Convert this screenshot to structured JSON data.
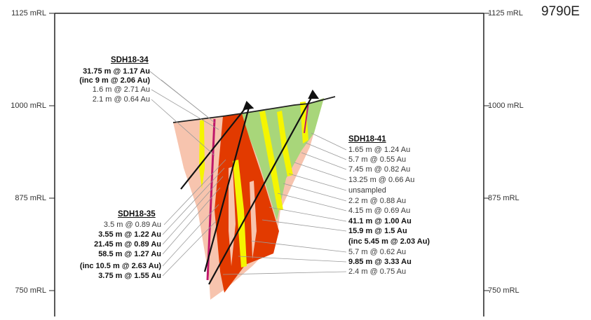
{
  "elevation_labels_left": [
    "1125 mRL",
    "1000 mRL",
    "875 mRL",
    "750 mRL"
  ],
  "elevation_labels_right": [
    "1125 mRL",
    "1000 mRL",
    "875 mRL",
    "750 mRL"
  ],
  "easting_label": "9790E",
  "holes": {
    "sdh18_34": {
      "name": "SDH18-34",
      "intercepts": [
        {
          "text": "31.75 m @ 1.17 Au",
          "bold": true
        },
        {
          "text": "(inc 9 m @ 2.06 Au)",
          "bold": true
        },
        {
          "text": "1.6 m @ 2.71 Au",
          "bold": false
        },
        {
          "text": "2.1 m @ 0.64 Au",
          "bold": false
        }
      ]
    },
    "sdh18_35": {
      "name": "SDH18-35",
      "intercepts": [
        {
          "text": "3.5 m @ 0.89 Au",
          "bold": false
        },
        {
          "text": "3.55 m @ 1.22 Au",
          "bold": true
        },
        {
          "text": "21.45 m @ 0.89 Au",
          "bold": true
        },
        {
          "text": "58.5 m @ 1.27 Au",
          "bold": true
        },
        {
          "text": "(inc 10.5 m @ 2.63 Au)",
          "bold": true
        },
        {
          "text": "3.75 m @ 1.55 Au",
          "bold": true
        }
      ]
    },
    "sdh18_41": {
      "name": "SDH18-41",
      "intercepts": [
        {
          "text": "1.65 m @ 1.24 Au",
          "bold": false
        },
        {
          "text": "5.7 m @ 0.55 Au",
          "bold": false
        },
        {
          "text": "7.45 m @ 0.82 Au",
          "bold": false
        },
        {
          "text": "13.25 m @ 0.66 Au",
          "bold": false
        },
        {
          "text": "unsampled",
          "bold": false
        },
        {
          "text": "2.2 m @ 0.88 Au",
          "bold": false
        },
        {
          "text": "4.15 m @ 0.69 Au",
          "bold": false
        },
        {
          "text": "41.1 m @ 1.00 Au",
          "bold": true
        },
        {
          "text": "15.9 m @ 1.5 Au",
          "bold": true
        },
        {
          "text": "(inc 5.45 m @ 2.03 Au)",
          "bold": true
        },
        {
          "text": "5.7 m @ 0.62 Au",
          "bold": false
        },
        {
          "text": "9.85 m @ 3.33 Au",
          "bold": true
        },
        {
          "text": "2.4 m @ 0.75 Au",
          "bold": false
        }
      ]
    }
  },
  "colors": {
    "host_rock": "#f7c4ae",
    "altered_green": "#a8d67a",
    "high_grade_red": "#e23a00",
    "mineralised_yellow": "#f5f500",
    "dyke_magenta": "#c0186a",
    "drill_trace": "#111111",
    "leader_line": "#9a9a9a",
    "frame": "#222222"
  }
}
